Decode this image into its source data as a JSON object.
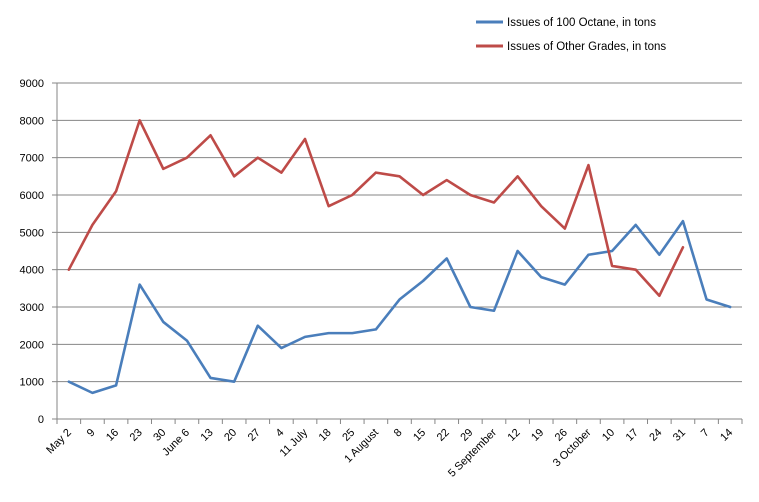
{
  "chart_data": {
    "type": "line",
    "title": "",
    "xlabel": "",
    "ylabel": "",
    "ylim": [
      0,
      9000
    ],
    "y_ticks": [
      "0",
      "1000",
      "2000",
      "3000",
      "4000",
      "5000",
      "6000",
      "7000",
      "8000",
      "9000"
    ],
    "grid": true,
    "legend_position": "top-right",
    "categories": [
      "May 2",
      "9",
      "16",
      "23",
      "30",
      "June 6",
      "13",
      "20",
      "27",
      "4",
      "11 July",
      "18",
      "25",
      "1 August",
      "8",
      "15",
      "22",
      "29",
      "5 September",
      "12",
      "19",
      "26",
      "3 October",
      "10",
      "17",
      "24",
      "31",
      "7",
      "14"
    ],
    "series": [
      {
        "name": "Issues of 100 Octane, in tons",
        "color": "#4a7ebb",
        "values": [
          1000,
          700,
          900,
          3600,
          2600,
          2100,
          1100,
          1000,
          2500,
          1900,
          2200,
          2300,
          2300,
          2400,
          3200,
          3700,
          4300,
          3000,
          2900,
          4500,
          3800,
          3600,
          4400,
          4500,
          5200,
          4400,
          5300,
          3200,
          3000
        ]
      },
      {
        "name": "Issues of Other Grades, in tons",
        "color": "#be4b48",
        "values": [
          4000,
          5200,
          6100,
          8000,
          6700,
          7000,
          7600,
          6500,
          7000,
          6600,
          7500,
          5700,
          6000,
          6600,
          6500,
          6000,
          6400,
          6000,
          5800,
          6500,
          5700,
          5100,
          6800,
          4100,
          4000,
          3300,
          4600,
          null,
          null
        ]
      }
    ]
  }
}
